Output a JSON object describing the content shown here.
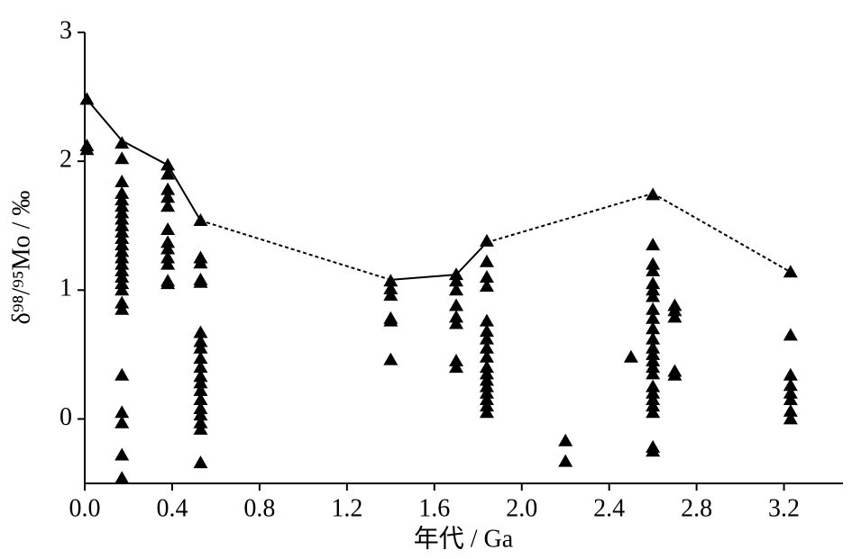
{
  "chart_data": {
    "type": "scatter",
    "x_label": "年代 / Ga",
    "y_label": "δ⁹⁸/⁹⁵Mo / ‰",
    "xlim": [
      0,
      3.47
    ],
    "ylim": [
      -0.5,
      3
    ],
    "xticks": [
      {
        "value": 0,
        "label": "0.0"
      },
      0.4,
      0.8,
      1.2,
      1.6,
      {
        "value": 2,
        "label": "2.0"
      },
      2.4,
      2.8,
      3.2
    ],
    "yticks": [
      0,
      1,
      2,
      3
    ],
    "series": [
      {
        "color": "#000000",
        "marker": "triangle",
        "x": [
          0.01,
          0.01,
          0.01,
          0.17,
          0.17,
          0.17,
          0.17,
          0.17,
          0.17,
          0.17,
          0.17,
          0.17,
          0.17,
          0.17,
          0.17,
          0.17,
          0.17,
          0.17,
          0.17,
          0.17,
          0.17,
          0.17,
          0.17,
          0.17,
          0.17,
          0.17,
          0.17,
          0.17,
          0.17,
          0.38,
          0.38,
          0.38,
          0.38,
          0.38,
          0.38,
          0.38,
          0.38,
          0.38,
          0.38,
          0.38,
          0.38,
          0.53,
          0.53,
          0.53,
          0.53,
          0.53,
          0.53,
          0.53,
          0.53,
          0.53,
          0.53,
          0.53,
          0.53,
          0.53,
          0.53,
          0.53,
          0.53,
          0.53,
          0.53,
          0.53,
          1.4,
          1.4,
          1.4,
          1.4,
          1.4,
          1.4,
          1.7,
          1.7,
          1.7,
          1.7,
          1.7,
          1.7,
          1.7,
          1.7,
          1.84,
          1.84,
          1.84,
          1.84,
          1.84,
          1.84,
          1.84,
          1.84,
          1.84,
          1.84,
          1.84,
          1.84,
          1.84,
          1.84,
          1.84,
          1.84,
          1.84,
          2.2,
          2.2,
          2.5,
          2.6,
          2.6,
          2.6,
          2.6,
          2.6,
          2.6,
          2.6,
          2.6,
          2.6,
          2.6,
          2.6,
          2.6,
          2.6,
          2.6,
          2.6,
          2.6,
          2.6,
          2.6,
          2.6,
          2.6,
          2.6,
          2.6,
          2.6,
          2.7,
          2.7,
          2.7,
          2.7,
          2.7,
          3.23,
          3.23,
          3.23,
          3.23,
          3.23,
          3.23,
          3.23,
          3.23
        ],
        "y": [
          2.48,
          2.12,
          2.09,
          2.14,
          2.02,
          1.84,
          1.75,
          1.7,
          1.65,
          1.6,
          1.55,
          1.5,
          1.45,
          1.4,
          1.35,
          1.3,
          1.25,
          1.2,
          1.15,
          1.1,
          1.05,
          1.0,
          0.9,
          0.85,
          0.34,
          0.05,
          -0.03,
          -0.28,
          -0.46,
          1.97,
          1.9,
          1.78,
          1.72,
          1.65,
          1.47,
          1.37,
          1.32,
          1.25,
          1.2,
          1.07,
          1.05,
          1.54,
          1.25,
          1.21,
          1.08,
          1.06,
          0.67,
          0.6,
          0.55,
          0.47,
          0.4,
          0.33,
          0.28,
          0.22,
          0.15,
          0.08,
          0.03,
          -0.03,
          -0.08,
          -0.34,
          1.07,
          1.01,
          0.96,
          0.78,
          0.76,
          0.46,
          1.12,
          1.07,
          1.0,
          0.88,
          0.79,
          0.74,
          0.45,
          0.4,
          1.38,
          1.22,
          1.1,
          1.03,
          0.76,
          0.68,
          0.62,
          0.55,
          0.48,
          0.4,
          0.35,
          0.3,
          0.25,
          0.2,
          0.15,
          0.1,
          0.05,
          -0.17,
          -0.33,
          0.48,
          1.74,
          1.35,
          1.2,
          1.15,
          1.05,
          1.0,
          0.95,
          0.85,
          0.78,
          0.7,
          0.62,
          0.55,
          0.5,
          0.45,
          0.4,
          0.35,
          0.25,
          0.2,
          0.15,
          0.1,
          0.05,
          -0.22,
          -0.25,
          0.88,
          0.84,
          0.79,
          0.37,
          0.34,
          1.14,
          0.65,
          0.34,
          0.26,
          0.2,
          0.15,
          0.06,
          0.0
        ]
      },
      {
        "color": "#000000",
        "marker": "line",
        "x": [
          0.01,
          0.17,
          0.38,
          0.53,
          1.4,
          1.7,
          1.84,
          2.6,
          3.23
        ],
        "y": [
          2.48,
          2.16,
          1.97,
          1.54,
          1.08,
          1.12,
          1.37,
          1.75,
          1.14
        ],
        "line_styles": [
          "solid",
          "solid",
          "solid",
          "dashed",
          "solid",
          "solid",
          "dashed",
          "dashed"
        ]
      }
    ]
  }
}
